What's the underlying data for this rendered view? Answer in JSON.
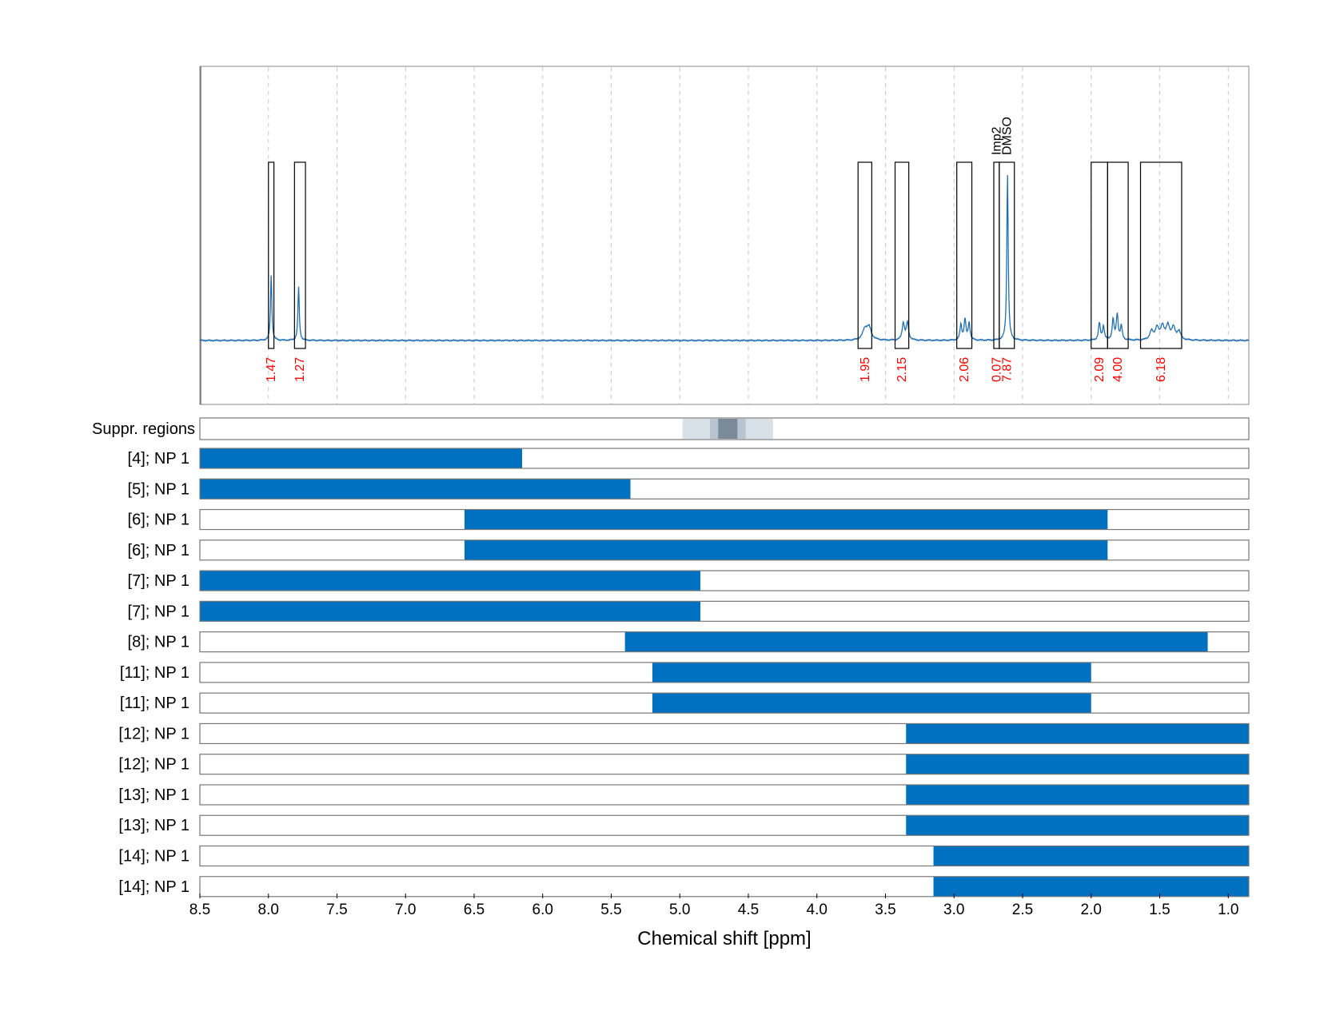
{
  "chart_data": {
    "type": "line",
    "xlabel": "Chemical shift [ppm]",
    "xlim": [
      8.5,
      0.85
    ],
    "x_ticks": [
      "8.5",
      "8.0",
      "7.5",
      "7.0",
      "6.5",
      "6.0",
      "5.5",
      "5.0",
      "4.5",
      "4.0",
      "3.5",
      "3.0",
      "2.5",
      "2.0",
      "1.5",
      "1.0"
    ],
    "grid": "vertical dashed",
    "line_color": "#1f6fb4",
    "bar_color": "#0070c0",
    "spectrum": {
      "baseline": 0,
      "peaks": [
        {
          "ppm": 7.98,
          "height": 0.38,
          "width": 0.006
        },
        {
          "ppm": 7.78,
          "height": 0.31,
          "width": 0.006
        },
        {
          "ppm": 3.65,
          "height": 0.06,
          "width": 0.02
        },
        {
          "ppm": 3.62,
          "height": 0.07,
          "width": 0.02
        },
        {
          "ppm": 3.37,
          "height": 0.1,
          "width": 0.01
        },
        {
          "ppm": 3.34,
          "height": 0.1,
          "width": 0.01
        },
        {
          "ppm": 2.95,
          "height": 0.09,
          "width": 0.008
        },
        {
          "ppm": 2.92,
          "height": 0.12,
          "width": 0.008
        },
        {
          "ppm": 2.89,
          "height": 0.1,
          "width": 0.008
        },
        {
          "ppm": 2.61,
          "height": 0.97,
          "width": 0.006
        },
        {
          "ppm": 1.94,
          "height": 0.1,
          "width": 0.008
        },
        {
          "ppm": 1.91,
          "height": 0.08,
          "width": 0.008
        },
        {
          "ppm": 1.84,
          "height": 0.12,
          "width": 0.008
        },
        {
          "ppm": 1.81,
          "height": 0.15,
          "width": 0.008
        },
        {
          "ppm": 1.78,
          "height": 0.08,
          "width": 0.008
        },
        {
          "ppm": 1.56,
          "height": 0.05,
          "width": 0.015
        },
        {
          "ppm": 1.52,
          "height": 0.07,
          "width": 0.015
        },
        {
          "ppm": 1.48,
          "height": 0.08,
          "width": 0.015
        },
        {
          "ppm": 1.44,
          "height": 0.08,
          "width": 0.015
        },
        {
          "ppm": 1.4,
          "height": 0.07,
          "width": 0.015
        },
        {
          "ppm": 1.36,
          "height": 0.05,
          "width": 0.015
        }
      ]
    },
    "integration_regions": [
      {
        "from": 8.0,
        "to": 7.96,
        "label": "1.47"
      },
      {
        "from": 7.81,
        "to": 7.73,
        "label": "1.27"
      },
      {
        "from": 3.7,
        "to": 3.6,
        "label": "1.95"
      },
      {
        "from": 3.43,
        "to": 3.33,
        "label": "2.15"
      },
      {
        "from": 2.98,
        "to": 2.87,
        "label": "2.06"
      },
      {
        "from": 2.71,
        "to": 2.67,
        "label": "0.07",
        "annotation": "Imp2"
      },
      {
        "from": 2.67,
        "to": 2.56,
        "label": "7.87",
        "annotation": "DMSO"
      },
      {
        "from": 2.0,
        "to": 1.88,
        "label": "2.09"
      },
      {
        "from": 1.88,
        "to": 1.73,
        "label": "4.00"
      },
      {
        "from": 1.64,
        "to": 1.34,
        "label": "6.18"
      }
    ],
    "suppression_regions": {
      "label": "Suppr. regions",
      "bands": [
        {
          "from": 4.98,
          "to": 4.32,
          "shade": "#d9e1e8"
        },
        {
          "from": 4.78,
          "to": 4.52,
          "shade": "#b8c4cf"
        },
        {
          "from": 4.72,
          "to": 4.58,
          "shade": "#7b8a98"
        }
      ]
    },
    "rows": [
      {
        "label": "[4]; NP 1",
        "from": 8.5,
        "to": 6.15
      },
      {
        "label": "[5]; NP 1",
        "from": 8.5,
        "to": 5.36
      },
      {
        "label": "[6]; NP 1",
        "from": 6.57,
        "to": 1.88
      },
      {
        "label": "[6]; NP 1",
        "from": 6.57,
        "to": 1.88
      },
      {
        "label": "[7]; NP 1",
        "from": 8.5,
        "to": 4.85
      },
      {
        "label": "[7]; NP 1",
        "from": 8.5,
        "to": 4.85
      },
      {
        "label": "[8]; NP 1",
        "from": 5.4,
        "to": 1.15
      },
      {
        "label": "[11]; NP 1",
        "from": 5.2,
        "to": 2.0
      },
      {
        "label": "[11]; NP 1",
        "from": 5.2,
        "to": 2.0
      },
      {
        "label": "[12]; NP 1",
        "from": 3.35,
        "to": 0.85
      },
      {
        "label": "[12]; NP 1",
        "from": 3.35,
        "to": 0.85
      },
      {
        "label": "[13]; NP 1",
        "from": 3.35,
        "to": 0.85
      },
      {
        "label": "[13]; NP 1",
        "from": 3.35,
        "to": 0.85
      },
      {
        "label": "[14]; NP 1",
        "from": 3.15,
        "to": 0.85
      },
      {
        "label": "[14]; NP 1",
        "from": 3.15,
        "to": 0.85
      }
    ]
  }
}
